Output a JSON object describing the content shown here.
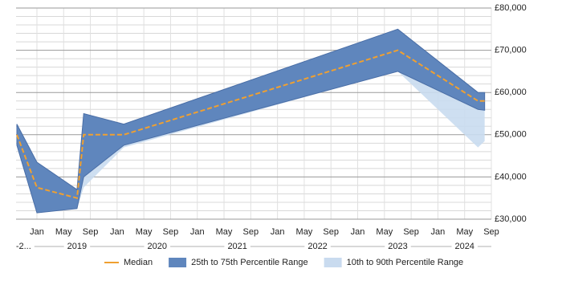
{
  "chart_data": {
    "type": "line",
    "x": [
      "2018-10",
      "2019-01",
      "2019-07",
      "2019-08",
      "2020-02",
      "2023-07",
      "2024-07",
      "2024-08"
    ],
    "xlim": [
      "2018-10",
      "2024-09"
    ],
    "xticks": [
      {
        "value": "2019-01",
        "label": "Jan"
      },
      {
        "value": "2019-05",
        "label": "May"
      },
      {
        "value": "2019-09",
        "label": "Sep"
      },
      {
        "value": "2020-01",
        "label": "Jan"
      },
      {
        "value": "2020-05",
        "label": "May"
      },
      {
        "value": "2020-09",
        "label": "Sep"
      },
      {
        "value": "2021-01",
        "label": "Jan"
      },
      {
        "value": "2021-05",
        "label": "May"
      },
      {
        "value": "2021-09",
        "label": "Sep"
      },
      {
        "value": "2022-01",
        "label": "Jan"
      },
      {
        "value": "2022-05",
        "label": "May"
      },
      {
        "value": "2022-09",
        "label": "Sep"
      },
      {
        "value": "2023-01",
        "label": "Jan"
      },
      {
        "value": "2023-05",
        "label": "May"
      },
      {
        "value": "2023-09",
        "label": "Sep"
      },
      {
        "value": "2024-01",
        "label": "Jan"
      },
      {
        "value": "2024-05",
        "label": "May"
      },
      {
        "value": "2024-09",
        "label": "Sep"
      }
    ],
    "year_labels": [
      {
        "value": "2018-11",
        "label": "-2..."
      },
      {
        "value": "2019-07",
        "label": "2019"
      },
      {
        "value": "2020-07",
        "label": "2020"
      },
      {
        "value": "2021-07",
        "label": "2021"
      },
      {
        "value": "2022-07",
        "label": "2022"
      },
      {
        "value": "2023-07",
        "label": "2023"
      },
      {
        "value": "2024-05",
        "label": "2024"
      }
    ],
    "ylim": [
      30000,
      80000
    ],
    "yticks": [
      {
        "value": 30000,
        "label": "£30,000"
      },
      {
        "value": 40000,
        "label": "£40,000"
      },
      {
        "value": 50000,
        "label": "£50,000"
      },
      {
        "value": 60000,
        "label": "£60,000"
      },
      {
        "value": 70000,
        "label": "£70,000"
      },
      {
        "value": 80000,
        "label": "£80,000"
      }
    ],
    "y_axis_side": "right",
    "grid": true,
    "legend": "bottom",
    "series": [
      {
        "name": "Median",
        "color": "#f0a030",
        "values": [
          50000,
          37500,
          35000,
          50000,
          50000,
          70000,
          58000,
          58000
        ]
      }
    ],
    "bands": [
      {
        "name": "25th to 75th Percentile Range",
        "color": "#5f86bd",
        "lower": [
          47500,
          31500,
          32500,
          40000,
          47500,
          65000,
          56000,
          55800
        ],
        "upper": [
          52500,
          43500,
          37000,
          55000,
          52500,
          75000,
          60000,
          60000
        ]
      },
      {
        "name": "10th to 90th Percentile Range",
        "color": "#c9dbef",
        "lower": [
          47500,
          31500,
          32500,
          37500,
          47000,
          65000,
          47000,
          48500
        ],
        "upper": [
          52500,
          43500,
          37000,
          55000,
          52500,
          75000,
          60000,
          60000
        ]
      }
    ]
  }
}
